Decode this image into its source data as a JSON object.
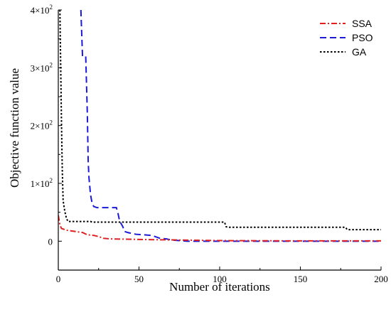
{
  "chart_data": {
    "type": "line",
    "xlabel": "Number of iterations",
    "ylabel": "Objective function value",
    "xlim": [
      0,
      200
    ],
    "ylim": [
      -50,
      400
    ],
    "x_ticks": [
      0,
      50,
      100,
      150,
      200
    ],
    "x_tick_labels": [
      "0",
      "50",
      "100",
      "150",
      "200"
    ],
    "y_ticks": [
      0,
      100,
      200,
      300,
      400
    ],
    "y_tick_labels": [
      {
        "base": "0",
        "exp": ""
      },
      {
        "base": "1×10",
        "exp": "2"
      },
      {
        "base": "2×10",
        "exp": "2"
      },
      {
        "base": "3×10",
        "exp": "2"
      },
      {
        "base": "4×10",
        "exp": "2"
      }
    ],
    "grid": false,
    "legend_position": "top-right",
    "series": [
      {
        "name": "SSA",
        "color": "#e02020",
        "dash": "dash-dot",
        "points": [
          [
            0,
            45
          ],
          [
            1,
            28
          ],
          [
            2,
            22
          ],
          [
            5,
            19
          ],
          [
            10,
            17
          ],
          [
            15,
            15
          ],
          [
            18,
            11
          ],
          [
            22,
            10
          ],
          [
            25,
            8
          ],
          [
            28,
            5
          ],
          [
            32,
            4
          ],
          [
            50,
            3
          ],
          [
            75,
            2
          ],
          [
            100,
            1
          ],
          [
            150,
            0.5
          ],
          [
            200,
            0.5
          ]
        ]
      },
      {
        "name": "PSO",
        "color": "#1a1ad8",
        "dash": "dashed",
        "points": [
          [
            14,
            400
          ],
          [
            15,
            320
          ],
          [
            17,
            320
          ],
          [
            18,
            220
          ],
          [
            18.5,
            140
          ],
          [
            19,
            110
          ],
          [
            20,
            80
          ],
          [
            21,
            65
          ],
          [
            22,
            60
          ],
          [
            24,
            58
          ],
          [
            36,
            58
          ],
          [
            37,
            48
          ],
          [
            38,
            35
          ],
          [
            40,
            25
          ],
          [
            41,
            17
          ],
          [
            43,
            15
          ],
          [
            48,
            12
          ],
          [
            58,
            10
          ],
          [
            63,
            5
          ],
          [
            67,
            4
          ],
          [
            70,
            2
          ],
          [
            75,
            1
          ],
          [
            80,
            0
          ],
          [
            200,
            0
          ]
        ]
      },
      {
        "name": "GA",
        "color": "#000000",
        "dash": "dotted",
        "points": [
          [
            1,
            400
          ],
          [
            1.5,
            300
          ],
          [
            2,
            200
          ],
          [
            2.5,
            120
          ],
          [
            3,
            70
          ],
          [
            4,
            52
          ],
          [
            5,
            40
          ],
          [
            6,
            34
          ],
          [
            20,
            34
          ],
          [
            21,
            33
          ],
          [
            103,
            33
          ],
          [
            104,
            25
          ],
          [
            105,
            24
          ],
          [
            178,
            24
          ],
          [
            179,
            20
          ],
          [
            200,
            20
          ]
        ]
      }
    ]
  }
}
